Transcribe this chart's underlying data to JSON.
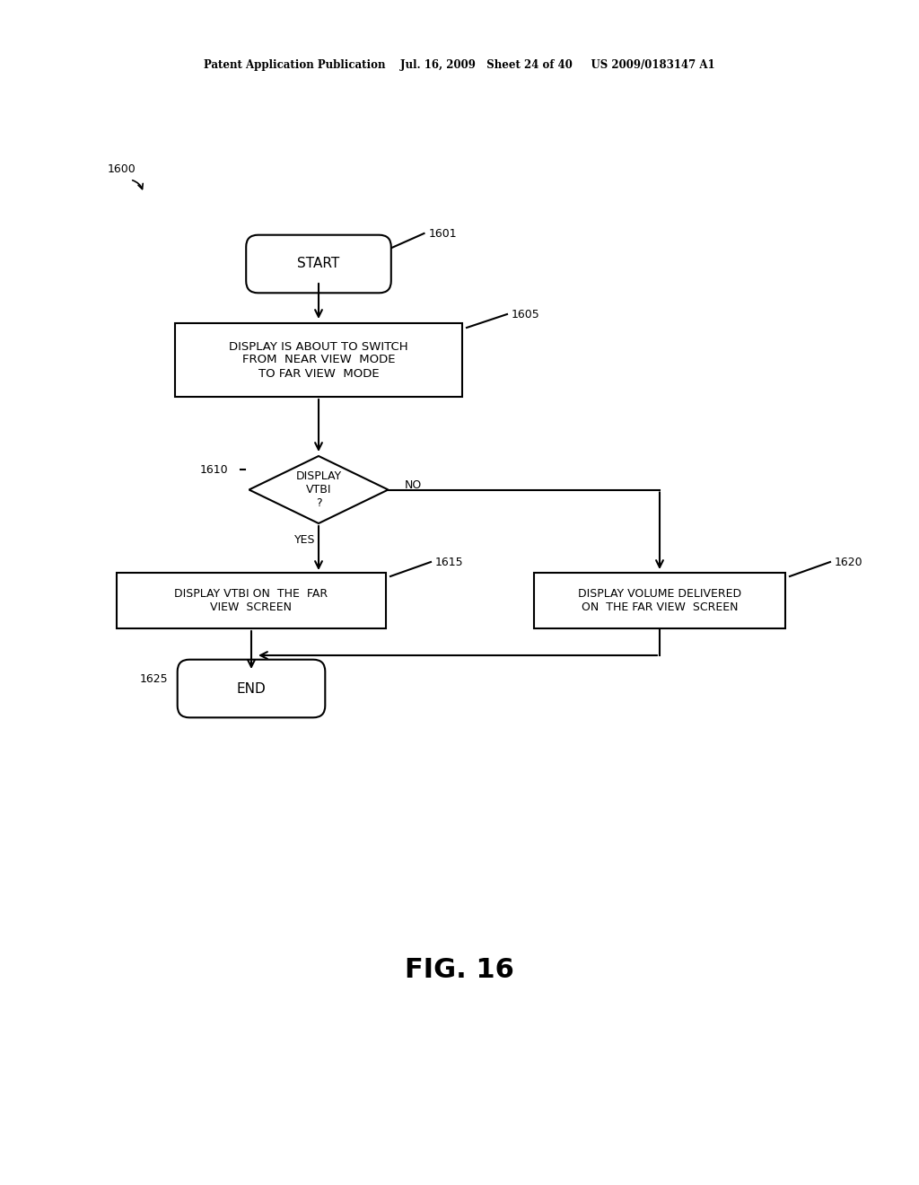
{
  "bg_color": "#ffffff",
  "line_color": "#000000",
  "header": "Patent Application Publication    Jul. 16, 2009   Sheet 24 of 40     US 2009/0183147 A1",
  "fig_label": "FIG. 16",
  "diagram_ref": "1600",
  "start_label": "1601",
  "box1605_label": "1605",
  "diamond_label": "1610",
  "box1615_label": "1615",
  "box1620_label": "1620",
  "end_label": "1625",
  "start_text": "START",
  "box1605_text": "DISPLAY IS ABOUT TO SWITCH\nFROM  NEAR VIEW  MODE\nTO FAR VIEW  MODE",
  "diamond_text": "DISPLAY\nVTBI\n?",
  "box1615_text": "DISPLAY VTBI ON  THE  FAR\nVIEW  SCREEN",
  "box1620_text": "DISPLAY VOLUME DELIVERED\nON  THE FAR VIEW  SCREEN",
  "end_text": "END",
  "yes_label": "YES",
  "no_label": "NO"
}
